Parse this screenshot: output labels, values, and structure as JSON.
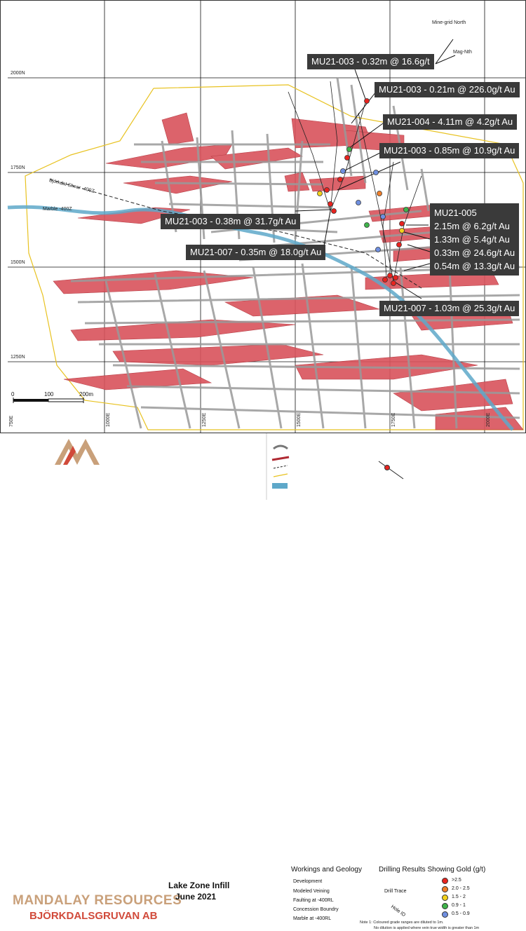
{
  "map": {
    "north": {
      "mine_grid": "Mine-grid North",
      "mag": "Mag-Nth"
    },
    "northings": [
      "2000N",
      "1750N",
      "1500N",
      "1250N"
    ],
    "eastings": [
      "750E",
      "1000E",
      "1250E",
      "1500E",
      "1750E",
      "2000E"
    ],
    "features": {
      "shear": "Björkdal Shear -400Z",
      "marble": "Marble -400Z"
    },
    "scale": {
      "labels": [
        "0",
        "100",
        "200m"
      ]
    },
    "callouts": [
      {
        "text": "MU21-003 - 0.32m @ 16.6g/t"
      },
      {
        "text": "MU21-003 - 0.21m @ 226.0g/t Au"
      },
      {
        "text": "MU21-004 - 4.11m @ 4.2g/t Au"
      },
      {
        "text": "MU21-003 - 0.85m @ 10.9g/t Au"
      },
      {
        "text": "MU21-003 - 0.38m @ 31.7g/t Au"
      },
      {
        "text": "MU21-007 - 0.35m @ 18.0g/t Au"
      },
      {
        "text": "MU21-007 - 1.03m @ 25.3g/t Au"
      }
    ],
    "mu21_005": {
      "title": "MU21-005",
      "lines": [
        "2.15m @ 6.2g/t Au",
        "1.33m @ 5.4g/t Au",
        "0.33m @ 24.6g/t Au",
        "0.54m @ 13.3g/t Au"
      ]
    }
  },
  "footer": {
    "company": "MANDALAY RESOURCES",
    "subsidiary": "BJÖRKDALSGRUVAN AB",
    "title_line1": "Lake Zone Infill",
    "title_line2": "June 2021",
    "workings_header": "Workings and Geology",
    "workings": [
      "Development",
      "Modeled Veining",
      "Faulting at -400RL",
      "Concession Boundry",
      "Marble at -400RL"
    ],
    "drilling_header": "Drilling Results Showing Gold (g/t)",
    "drill_trace": "Drill Trace",
    "hole_id": "Hole ID",
    "grades": [
      {
        "label": ">2.5",
        "color": "#e8231f"
      },
      {
        "label": "2.0 - 2.5",
        "color": "#f07f2a"
      },
      {
        "label": "1.5 - 2",
        "color": "#f2d21c"
      },
      {
        "label": "0.9 - 1",
        "color": "#3fb34a"
      },
      {
        "label": "0.5 - 0.9",
        "color": "#6f8fe0"
      }
    ],
    "note_line1": "Note 1:  Coloured grade ranges are diluted to 1m.",
    "note_line2": "No dilution is applied where vein true width is greater than 1m"
  }
}
